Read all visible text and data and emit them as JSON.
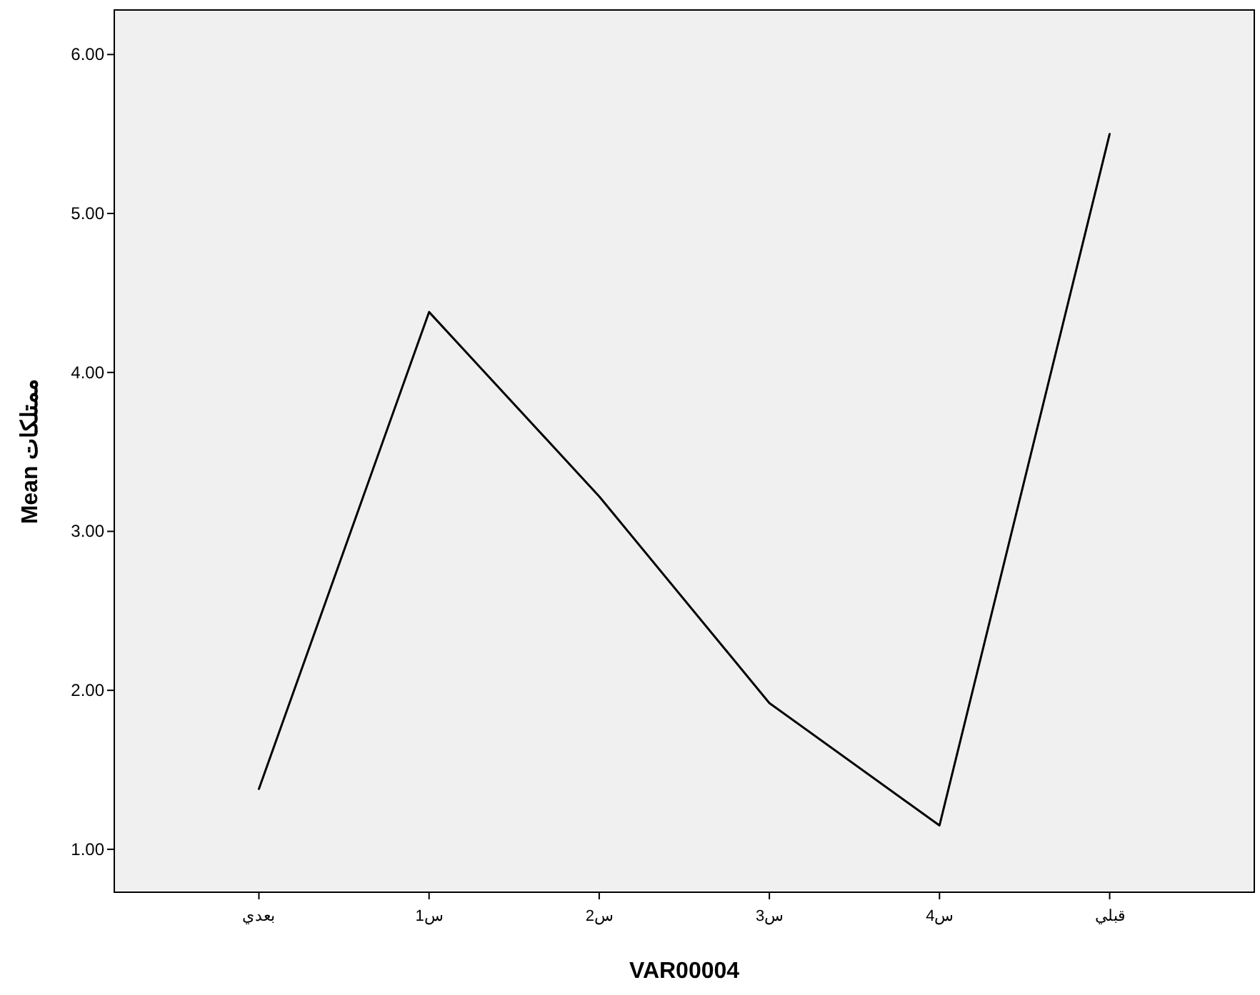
{
  "chart_data": {
    "type": "line",
    "xlabel": "VAR00004",
    "ylabel": "Mean ممتلكات",
    "categories": [
      "بعدي",
      "س1",
      "س2",
      "س3",
      "س4",
      "قبلي"
    ],
    "series": [
      {
        "color": "#000000",
        "values": [
          1.38,
          4.38,
          3.22,
          1.92,
          1.15,
          5.5
        ]
      }
    ],
    "ylim": [
      0.73,
      6.28
    ],
    "yticks": [
      {
        "value": 1,
        "label": "1.00"
      },
      {
        "value": 2,
        "label": "2.00"
      },
      {
        "value": 3,
        "label": "3.00"
      },
      {
        "value": 4,
        "label": "4.00"
      },
      {
        "value": 5,
        "label": "5.00"
      },
      {
        "value": 6,
        "label": "6.00"
      }
    ],
    "grid": false,
    "marker": "none",
    "line_style": "solid"
  }
}
